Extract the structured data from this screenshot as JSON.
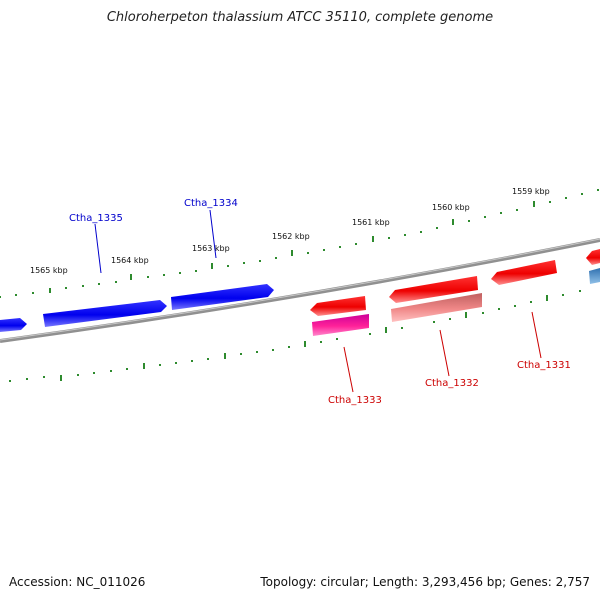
{
  "title": "Chloroherpeton thalassium ATCC 35110, complete genome",
  "footer": {
    "accession": "Accession: NC_011026",
    "summary": "Topology: circular; Length: 3,293,456 bp; Genes: 2,757"
  },
  "ruler_labels": [
    "1565 kbp",
    "1564 kbp",
    "1563 kbp",
    "1562 kbp",
    "1561 kbp",
    "1560 kbp",
    "1559 kbp"
  ],
  "gene_labels": [
    {
      "name": "Ctha_1335",
      "strand": "forward"
    },
    {
      "name": "Ctha_1334",
      "strand": "forward"
    },
    {
      "name": "Ctha_1333",
      "strand": "reverse"
    },
    {
      "name": "Ctha_1332",
      "strand": "reverse"
    },
    {
      "name": "Ctha_1331",
      "strand": "reverse"
    }
  ],
  "colors": {
    "forward_gene": "#0000ee",
    "reverse_gene": "#ee0000",
    "reverse_gene_pink": "#ff3399",
    "reverse_gene_light": "#f08080",
    "backbone": "#808080",
    "ticks": "#2e8b2e",
    "forward_label": "#0000cc",
    "reverse_label": "#cc0000"
  }
}
